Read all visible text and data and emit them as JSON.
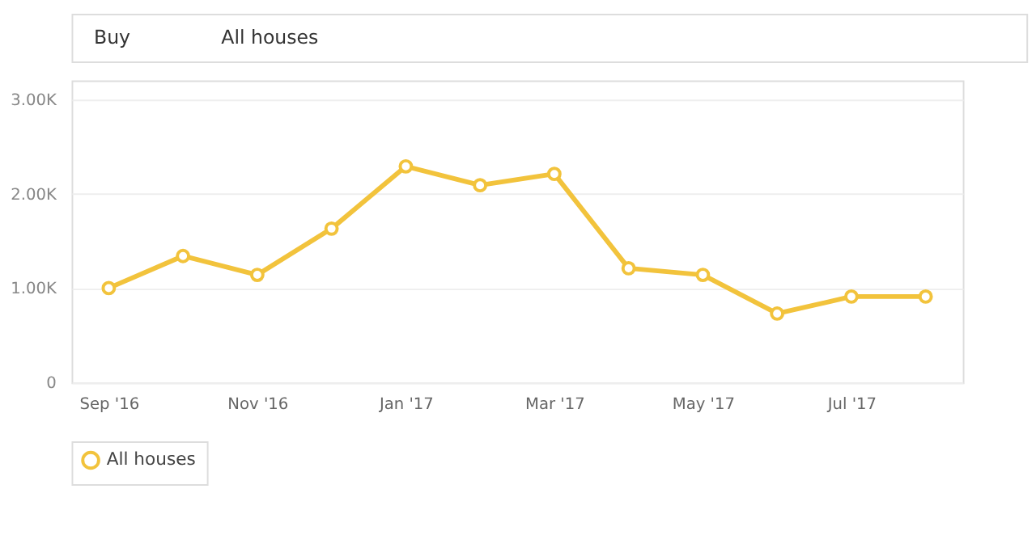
{
  "chart_data": {
    "type": "line",
    "annotations": [
      "Buy",
      "All houses"
    ],
    "categories": [
      "Sep '16",
      null,
      "Nov '16",
      null,
      "Jan '17",
      null,
      "Mar '17",
      null,
      "May '17",
      null,
      "Jul '17",
      null
    ],
    "series": [
      {
        "name": "All houses",
        "color": "#f2c33c",
        "values": [
          1000,
          1340,
          1140,
          1630,
          2290,
          2090,
          2210,
          1210,
          1140,
          730,
          910,
          910
        ]
      }
    ],
    "ylim": [
      0,
      3200
    ],
    "yticks": [
      0,
      {
        "value": 1000,
        "label": "1.00K"
      },
      {
        "value": 2000,
        "label": "2.00K"
      },
      {
        "value": 3000,
        "label": "3.00K"
      }
    ],
    "grid": "y",
    "legend": "bottom",
    "marker": "circle",
    "line_style": "solid"
  }
}
